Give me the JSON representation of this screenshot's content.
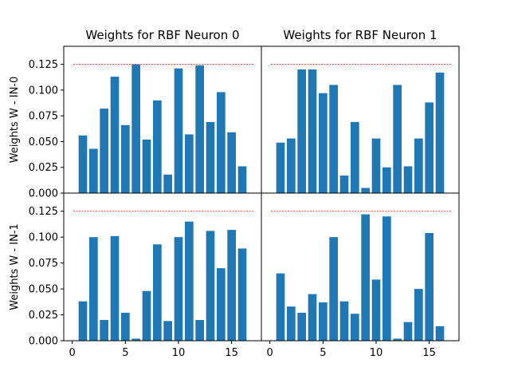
{
  "chart_data": [
    {
      "type": "bar",
      "title": "Weights for RBF Neuron 0",
      "ylabel": "Weights W - IN-0",
      "xlabel": "",
      "x": [
        1,
        2,
        3,
        4,
        5,
        6,
        7,
        8,
        9,
        10,
        11,
        12,
        13,
        14,
        15,
        16
      ],
      "values": [
        0.056,
        0.043,
        0.082,
        0.113,
        0.066,
        0.125,
        0.052,
        0.09,
        0.018,
        0.121,
        0.057,
        0.124,
        0.069,
        0.098,
        0.059,
        0.026
      ],
      "reference_line": 0.125,
      "xlim": [
        -0.8,
        17.8
      ],
      "ylim": [
        0,
        0.1425
      ]
    },
    {
      "type": "bar",
      "title": "Weights for RBF Neuron 1",
      "ylabel": "",
      "xlabel": "",
      "x": [
        1,
        2,
        3,
        4,
        5,
        6,
        7,
        8,
        9,
        10,
        11,
        12,
        13,
        14,
        15,
        16
      ],
      "values": [
        0.049,
        0.053,
        0.12,
        0.12,
        0.097,
        0.105,
        0.017,
        0.069,
        0.005,
        0.053,
        0.025,
        0.105,
        0.026,
        0.053,
        0.088,
        0.117
      ],
      "reference_line": 0.125,
      "xlim": [
        -0.8,
        17.8
      ],
      "ylim": [
        0,
        0.1425
      ]
    },
    {
      "type": "bar",
      "title": "",
      "ylabel": "Weights W - IN-1",
      "xlabel": "",
      "x": [
        1,
        2,
        3,
        4,
        5,
        6,
        7,
        8,
        9,
        10,
        11,
        12,
        13,
        14,
        15,
        16
      ],
      "values": [
        0.038,
        0.1,
        0.02,
        0.101,
        0.027,
        0.002,
        0.048,
        0.093,
        0.019,
        0.1,
        0.115,
        0.02,
        0.106,
        0.07,
        0.107,
        0.089
      ],
      "reference_line": 0.125,
      "xlim": [
        -0.8,
        17.8
      ],
      "ylim": [
        0,
        0.1425
      ]
    },
    {
      "type": "bar",
      "title": "",
      "ylabel": "",
      "xlabel": "",
      "x": [
        1,
        2,
        3,
        4,
        5,
        6,
        7,
        8,
        9,
        10,
        11,
        12,
        13,
        14,
        15,
        16
      ],
      "values": [
        0.065,
        0.033,
        0.027,
        0.045,
        0.037,
        0.1,
        0.038,
        0.026,
        0.122,
        0.059,
        0.12,
        0.002,
        0.018,
        0.05,
        0.104,
        0.014
      ],
      "reference_line": 0.125,
      "xlim": [
        -0.8,
        17.8
      ],
      "ylim": [
        0,
        0.1425
      ]
    }
  ],
  "axes": {
    "y_ticks": [
      "0.000",
      "0.025",
      "0.050",
      "0.075",
      "0.100",
      "0.125"
    ],
    "x_ticks": [
      "0",
      "5",
      "10",
      "15"
    ]
  },
  "colors": {
    "bar": "#1f77b4",
    "reference_line": "#ff0000",
    "axis": "#000000"
  }
}
